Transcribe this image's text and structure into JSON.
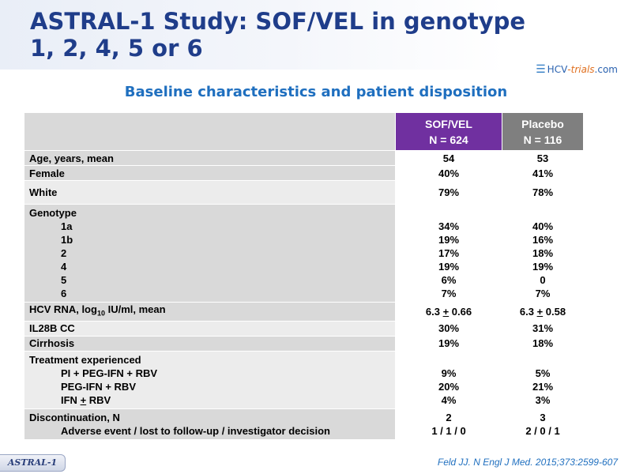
{
  "slide": {
    "title_line1": "ASTRAL-1 Study: SOF/VEL in genotype",
    "title_line2": "1, 2, 4, 5 or 6",
    "subtitle": "Baseline characteristics and patient disposition",
    "logo": {
      "part1": "HCV",
      "part2": "-trials",
      "part3": ".com"
    },
    "footer_tag": "ASTRAL-1",
    "citation": "Feld JJ. N Engl J Med. 2015;373:2599-607"
  },
  "table": {
    "headers": {
      "sof_name": "SOF/VEL",
      "sof_n": "N = 624",
      "plc_name": "Placebo",
      "plc_n": "N = 116"
    },
    "age": {
      "label": "Age, years, mean",
      "sof": "54",
      "plc": "53"
    },
    "female": {
      "label": "Female",
      "sof": "40%",
      "plc": "41%"
    },
    "white": {
      "label": "White",
      "sof": "79%",
      "plc": "78%"
    },
    "genotype": {
      "label": "Genotype",
      "rows": [
        {
          "label": "1a",
          "sof": "34%",
          "plc": "40%"
        },
        {
          "label": "1b",
          "sof": "19%",
          "plc": "16%"
        },
        {
          "label": "2",
          "sof": "17%",
          "plc": "18%"
        },
        {
          "label": "4",
          "sof": "19%",
          "plc": "19%"
        },
        {
          "label": "5",
          "sof": "6%",
          "plc": "0"
        },
        {
          "label": "6",
          "sof": "7%",
          "plc": "7%"
        }
      ]
    },
    "hcv_rna": {
      "label_pre": "HCV RNA, log",
      "label_sub": "10",
      "label_post": " IU/ml, mean",
      "sof_mean": "6.3",
      "sof_sd": "0.66",
      "plc_mean": "6.3",
      "plc_sd": "0.58",
      "pm": "+"
    },
    "il28b": {
      "label": "IL28B CC",
      "sof": "30%",
      "plc": "31%"
    },
    "cirrhosis": {
      "label": "Cirrhosis",
      "sof": "19%",
      "plc": "18%"
    },
    "treatment": {
      "label": "Treatment experienced",
      "rows": [
        {
          "label": "PI + PEG-IFN + RBV",
          "sof": "9%",
          "plc": "5%"
        },
        {
          "label": "PEG-IFN + RBV",
          "sof": "20%",
          "plc": "21%"
        }
      ],
      "ifn_pre": "IFN ",
      "ifn_pm": "+",
      "ifn_post": " RBV",
      "ifn_sof": "4%",
      "ifn_plc": "3%"
    },
    "discontinuation": {
      "label": "Discontinuation, N",
      "sof": "2",
      "plc": "3",
      "sub_label": "Adverse event / lost to follow-up / investigator decision",
      "sub_sof": "1 / 1 / 0",
      "sub_plc": "2 / 0 / 1"
    }
  },
  "colors": {
    "title": "#1f3d8a",
    "subtitle": "#1f6fbf",
    "sof_header": "#7030a0",
    "placebo_header": "#7f7f7f",
    "row_dark": "#d9d9d9",
    "row_light": "#ececec"
  }
}
